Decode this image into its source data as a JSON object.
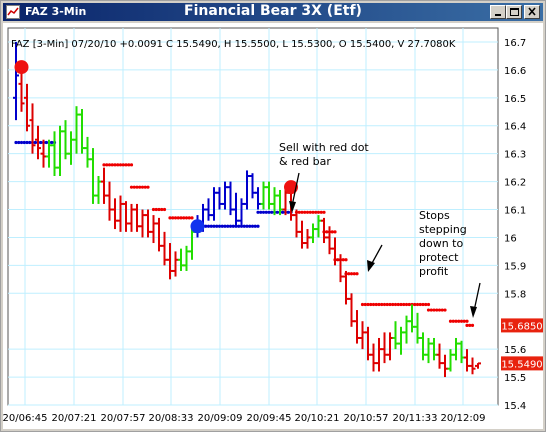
{
  "window": {
    "title": "FAZ 3-Min",
    "chart_title": "Financial Bear 3X (Etf)"
  },
  "colors": {
    "titlebar_start": "#0a246a",
    "titlebar_end": "#3a6ea5",
    "grid": "#bfefff",
    "bar_red": "#dd0000",
    "bar_green": "#22dd00",
    "bar_blue": "#0000cc",
    "stop_red": "#ee0000",
    "stop_blue": "#0000cc",
    "price_label_bg": "#e8220e"
  },
  "icons": [
    "app-icon",
    "minimize-icon",
    "maximize-icon",
    "close-icon",
    "sell-arrow-icon",
    "stop-arrow-icon"
  ],
  "info_line": "FAZ [3-Min] 07/20/10  +0.0091 C 15.5490, H 15.5500, L 15.5300, O 15.5400, V 27.7080K",
  "y_axis": {
    "ticks": [
      "16.7",
      "16.6",
      "16.5",
      "16.4",
      "16.3",
      "16.2",
      "16.1",
      "16",
      "15.9",
      "15.8",
      "15.6",
      "15.5",
      "15.4"
    ],
    "price_labels": [
      {
        "text": "15.6850",
        "value": 15.685
      },
      {
        "text": "15.5490",
        "value": 15.549
      }
    ]
  },
  "x_axis": {
    "ticks": [
      "20/06:45",
      "20/07:21",
      "20/07:57",
      "20/08:33",
      "20/09:09",
      "20/09:45",
      "20/10:21",
      "20/10:57",
      "20/11:33",
      "20/12:09"
    ]
  },
  "annotations": [
    {
      "lines": [
        "Sell with red dot",
        "& red bar"
      ]
    },
    {
      "lines": [
        "Stops",
        "stepping",
        "down to",
        "protect",
        "profit"
      ]
    }
  ],
  "chart_data": {
    "type": "ohlc",
    "title": "Financial Bear 3X (Etf)",
    "symbol": "FAZ",
    "interval": "3-Min",
    "date": "07/20/10",
    "ylim": [
      15.4,
      16.75
    ],
    "x_categories": [
      "20/06:45",
      "20/07:21",
      "20/07:57",
      "20/08:33",
      "20/09:09",
      "20/09:45",
      "20/10:21",
      "20/10:57",
      "20/11:33",
      "20/12:09"
    ],
    "grid": true,
    "last": {
      "open": 15.54,
      "high": 15.55,
      "low": 15.53,
      "close": 15.549,
      "volume": "27.7080K",
      "change": 0.0091
    },
    "bars": [
      {
        "o": 16.5,
        "h": 16.7,
        "l": 16.42,
        "c": 16.58,
        "color": "blue"
      },
      {
        "o": 16.55,
        "h": 16.6,
        "l": 16.45,
        "c": 16.48,
        "color": "red"
      },
      {
        "o": 16.5,
        "h": 16.55,
        "l": 16.38,
        "c": 16.4,
        "color": "red"
      },
      {
        "o": 16.42,
        "h": 16.48,
        "l": 16.3,
        "c": 16.33,
        "color": "red"
      },
      {
        "o": 16.35,
        "h": 16.4,
        "l": 16.28,
        "c": 16.32,
        "color": "red"
      },
      {
        "o": 16.3,
        "h": 16.35,
        "l": 16.25,
        "c": 16.29,
        "color": "red"
      },
      {
        "o": 16.29,
        "h": 16.35,
        "l": 16.25,
        "c": 16.33,
        "color": "green"
      },
      {
        "o": 16.33,
        "h": 16.38,
        "l": 16.22,
        "c": 16.25,
        "color": "green"
      },
      {
        "o": 16.25,
        "h": 16.4,
        "l": 16.22,
        "c": 16.38,
        "color": "green"
      },
      {
        "o": 16.38,
        "h": 16.42,
        "l": 16.28,
        "c": 16.3,
        "color": "green"
      },
      {
        "o": 16.3,
        "h": 16.38,
        "l": 16.26,
        "c": 16.35,
        "color": "green"
      },
      {
        "o": 16.35,
        "h": 16.47,
        "l": 16.3,
        "c": 16.44,
        "color": "green"
      },
      {
        "o": 16.44,
        "h": 16.46,
        "l": 16.3,
        "c": 16.32,
        "color": "green"
      },
      {
        "o": 16.32,
        "h": 16.36,
        "l": 16.25,
        "c": 16.28,
        "color": "green"
      },
      {
        "o": 16.28,
        "h": 16.32,
        "l": 16.12,
        "c": 16.15,
        "color": "green"
      },
      {
        "o": 16.15,
        "h": 16.22,
        "l": 16.12,
        "c": 16.2,
        "color": "green"
      },
      {
        "o": 16.2,
        "h": 16.25,
        "l": 16.12,
        "c": 16.15,
        "color": "red"
      },
      {
        "o": 16.15,
        "h": 16.2,
        "l": 16.06,
        "c": 16.1,
        "color": "red"
      },
      {
        "o": 16.1,
        "h": 16.14,
        "l": 16.03,
        "c": 16.06,
        "color": "red"
      },
      {
        "o": 16.06,
        "h": 16.15,
        "l": 16.02,
        "c": 16.12,
        "color": "red"
      },
      {
        "o": 16.12,
        "h": 16.13,
        "l": 16.02,
        "c": 16.05,
        "color": "red"
      },
      {
        "o": 16.05,
        "h": 16.12,
        "l": 16.02,
        "c": 16.1,
        "color": "red"
      },
      {
        "o": 16.1,
        "h": 16.12,
        "l": 16.02,
        "c": 16.04,
        "color": "red"
      },
      {
        "o": 16.04,
        "h": 16.1,
        "l": 16.0,
        "c": 16.08,
        "color": "red"
      },
      {
        "o": 16.08,
        "h": 16.1,
        "l": 16.0,
        "c": 16.02,
        "color": "red"
      },
      {
        "o": 16.02,
        "h": 16.08,
        "l": 15.98,
        "c": 16.05,
        "color": "red"
      },
      {
        "o": 16.05,
        "h": 16.07,
        "l": 15.95,
        "c": 15.97,
        "color": "red"
      },
      {
        "o": 15.97,
        "h": 16.02,
        "l": 15.9,
        "c": 15.92,
        "color": "red"
      },
      {
        "o": 15.92,
        "h": 15.98,
        "l": 15.85,
        "c": 15.88,
        "color": "red"
      },
      {
        "o": 15.88,
        "h": 15.95,
        "l": 15.86,
        "c": 15.92,
        "color": "red"
      },
      {
        "o": 15.92,
        "h": 15.96,
        "l": 15.88,
        "c": 15.9,
        "color": "green"
      },
      {
        "o": 15.9,
        "h": 15.97,
        "l": 15.88,
        "c": 15.95,
        "color": "green"
      },
      {
        "o": 15.95,
        "h": 16.04,
        "l": 15.92,
        "c": 16.02,
        "color": "green"
      },
      {
        "o": 16.02,
        "h": 16.08,
        "l": 16.0,
        "c": 16.05,
        "color": "blue"
      },
      {
        "o": 16.05,
        "h": 16.12,
        "l": 16.02,
        "c": 16.1,
        "color": "blue"
      },
      {
        "o": 16.1,
        "h": 16.14,
        "l": 16.06,
        "c": 16.08,
        "color": "blue"
      },
      {
        "o": 16.08,
        "h": 16.18,
        "l": 16.06,
        "c": 16.16,
        "color": "blue"
      },
      {
        "o": 16.16,
        "h": 16.18,
        "l": 16.1,
        "c": 16.12,
        "color": "blue"
      },
      {
        "o": 16.12,
        "h": 16.2,
        "l": 16.1,
        "c": 16.18,
        "color": "blue"
      },
      {
        "o": 16.18,
        "h": 16.2,
        "l": 16.08,
        "c": 16.1,
        "color": "blue"
      },
      {
        "o": 16.1,
        "h": 16.16,
        "l": 16.04,
        "c": 16.06,
        "color": "blue"
      },
      {
        "o": 16.06,
        "h": 16.14,
        "l": 16.04,
        "c": 16.12,
        "color": "blue"
      },
      {
        "o": 16.12,
        "h": 16.24,
        "l": 16.1,
        "c": 16.22,
        "color": "blue"
      },
      {
        "o": 16.22,
        "h": 16.23,
        "l": 16.14,
        "c": 16.16,
        "color": "blue"
      },
      {
        "o": 16.16,
        "h": 16.18,
        "l": 16.1,
        "c": 16.12,
        "color": "blue"
      },
      {
        "o": 16.12,
        "h": 16.2,
        "l": 16.1,
        "c": 16.18,
        "color": "green"
      },
      {
        "o": 16.18,
        "h": 16.2,
        "l": 16.1,
        "c": 16.12,
        "color": "green"
      },
      {
        "o": 16.12,
        "h": 16.18,
        "l": 16.08,
        "c": 16.15,
        "color": "green"
      },
      {
        "o": 16.15,
        "h": 16.17,
        "l": 16.08,
        "c": 16.1,
        "color": "green"
      },
      {
        "o": 16.1,
        "h": 16.18,
        "l": 16.08,
        "c": 16.16,
        "color": "red"
      },
      {
        "o": 16.16,
        "h": 16.18,
        "l": 16.06,
        "c": 16.08,
        "color": "red"
      },
      {
        "o": 16.08,
        "h": 16.1,
        "l": 16.0,
        "c": 16.02,
        "color": "red"
      },
      {
        "o": 16.02,
        "h": 16.06,
        "l": 15.96,
        "c": 15.98,
        "color": "red"
      },
      {
        "o": 15.98,
        "h": 16.03,
        "l": 15.96,
        "c": 16.0,
        "color": "red"
      },
      {
        "o": 16.0,
        "h": 16.05,
        "l": 15.98,
        "c": 16.03,
        "color": "green"
      },
      {
        "o": 16.03,
        "h": 16.08,
        "l": 16.0,
        "c": 16.06,
        "color": "green"
      },
      {
        "o": 16.06,
        "h": 16.07,
        "l": 15.98,
        "c": 16.0,
        "color": "red"
      },
      {
        "o": 16.0,
        "h": 16.04,
        "l": 15.94,
        "c": 15.96,
        "color": "red"
      },
      {
        "o": 15.96,
        "h": 16.0,
        "l": 15.9,
        "c": 15.92,
        "color": "red"
      },
      {
        "o": 15.92,
        "h": 15.94,
        "l": 15.84,
        "c": 15.86,
        "color": "red"
      },
      {
        "o": 15.86,
        "h": 15.88,
        "l": 15.76,
        "c": 15.78,
        "color": "red"
      },
      {
        "o": 15.78,
        "h": 15.8,
        "l": 15.68,
        "c": 15.7,
        "color": "red"
      },
      {
        "o": 15.7,
        "h": 15.74,
        "l": 15.62,
        "c": 15.64,
        "color": "red"
      },
      {
        "o": 15.64,
        "h": 15.7,
        "l": 15.6,
        "c": 15.66,
        "color": "red"
      },
      {
        "o": 15.66,
        "h": 15.68,
        "l": 15.56,
        "c": 15.58,
        "color": "red"
      },
      {
        "o": 15.58,
        "h": 15.62,
        "l": 15.52,
        "c": 15.55,
        "color": "red"
      },
      {
        "o": 15.55,
        "h": 15.64,
        "l": 15.52,
        "c": 15.6,
        "color": "red"
      },
      {
        "o": 15.6,
        "h": 15.66,
        "l": 15.55,
        "c": 15.58,
        "color": "red"
      },
      {
        "o": 15.58,
        "h": 15.66,
        "l": 15.56,
        "c": 15.64,
        "color": "red"
      },
      {
        "o": 15.64,
        "h": 15.7,
        "l": 15.6,
        "c": 15.62,
        "color": "green"
      },
      {
        "o": 15.62,
        "h": 15.68,
        "l": 15.58,
        "c": 15.66,
        "color": "green"
      },
      {
        "o": 15.66,
        "h": 15.72,
        "l": 15.62,
        "c": 15.7,
        "color": "green"
      },
      {
        "o": 15.7,
        "h": 15.76,
        "l": 15.66,
        "c": 15.68,
        "color": "green"
      },
      {
        "o": 15.68,
        "h": 15.73,
        "l": 15.62,
        "c": 15.64,
        "color": "green"
      },
      {
        "o": 15.64,
        "h": 15.66,
        "l": 15.56,
        "c": 15.58,
        "color": "green"
      },
      {
        "o": 15.58,
        "h": 15.64,
        "l": 15.55,
        "c": 15.62,
        "color": "green"
      },
      {
        "o": 15.62,
        "h": 15.64,
        "l": 15.56,
        "c": 15.58,
        "color": "green"
      },
      {
        "o": 15.58,
        "h": 15.62,
        "l": 15.53,
        "c": 15.55,
        "color": "red"
      },
      {
        "o": 15.55,
        "h": 15.58,
        "l": 15.5,
        "c": 15.53,
        "color": "red"
      },
      {
        "o": 15.53,
        "h": 15.6,
        "l": 15.52,
        "c": 15.58,
        "color": "green"
      },
      {
        "o": 15.58,
        "h": 15.64,
        "l": 15.56,
        "c": 15.62,
        "color": "green"
      },
      {
        "o": 15.62,
        "h": 15.63,
        "l": 15.55,
        "c": 15.57,
        "color": "green"
      },
      {
        "o": 15.57,
        "h": 15.6,
        "l": 15.52,
        "c": 15.54,
        "color": "red"
      },
      {
        "o": 15.54,
        "h": 15.57,
        "l": 15.51,
        "c": 15.53,
        "color": "red"
      },
      {
        "o": 15.54,
        "h": 15.55,
        "l": 15.53,
        "c": 15.549,
        "color": "red"
      }
    ],
    "stop_segments": [
      {
        "from": 0,
        "to": 7,
        "value": 16.34,
        "color": "blue"
      },
      {
        "from": 16,
        "to": 21,
        "value": 16.26,
        "color": "red"
      },
      {
        "from": 21,
        "to": 24,
        "value": 16.18,
        "color": "red"
      },
      {
        "from": 25,
        "to": 27,
        "value": 16.1,
        "color": "red"
      },
      {
        "from": 28,
        "to": 32,
        "value": 16.07,
        "color": "red"
      },
      {
        "from": 34,
        "to": 44,
        "value": 16.04,
        "color": "blue"
      },
      {
        "from": 44,
        "to": 50,
        "value": 16.09,
        "color": "blue"
      },
      {
        "from": 51,
        "to": 56,
        "value": 16.09,
        "color": "red"
      },
      {
        "from": 56,
        "to": 58,
        "value": 16.02,
        "color": "red"
      },
      {
        "from": 58,
        "to": 60,
        "value": 15.92,
        "color": "red"
      },
      {
        "from": 60,
        "to": 62,
        "value": 15.87,
        "color": "red"
      },
      {
        "from": 63,
        "to": 75,
        "value": 15.76,
        "color": "red"
      },
      {
        "from": 75,
        "to": 78,
        "value": 15.74,
        "color": "red"
      },
      {
        "from": 79,
        "to": 82,
        "value": 15.7,
        "color": "red"
      },
      {
        "from": 82,
        "to": 83,
        "value": 15.685,
        "color": "red"
      }
    ],
    "signals": [
      {
        "bar": 1,
        "value": 16.61,
        "color": "red"
      },
      {
        "bar": 33,
        "value": 16.04,
        "color": "blue"
      },
      {
        "bar": 50,
        "value": 16.18,
        "color": "red"
      }
    ]
  }
}
